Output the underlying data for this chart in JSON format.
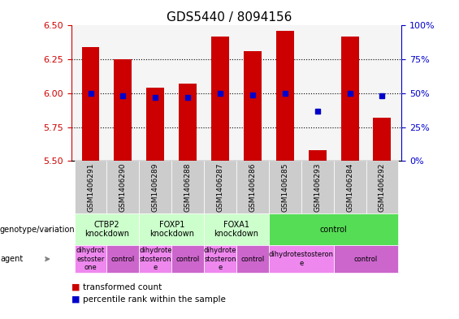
{
  "title": "GDS5440 / 8094156",
  "samples": [
    "GSM1406291",
    "GSM1406290",
    "GSM1406289",
    "GSM1406288",
    "GSM1406287",
    "GSM1406286",
    "GSM1406285",
    "GSM1406293",
    "GSM1406284",
    "GSM1406292"
  ],
  "transformed_count": [
    6.34,
    6.25,
    6.04,
    6.07,
    6.42,
    6.31,
    6.46,
    5.58,
    6.42,
    5.82
  ],
  "percentile_rank": [
    50,
    48,
    47,
    47,
    50,
    49,
    50,
    37,
    50,
    48
  ],
  "ylim": [
    5.5,
    6.5
  ],
  "yticks": [
    5.5,
    5.75,
    6.0,
    6.25,
    6.5
  ],
  "right_yticks": [
    0,
    25,
    50,
    75,
    100
  ],
  "bar_color": "#cc0000",
  "dot_color": "#0000cc",
  "bar_bottom": 5.5,
  "genotype_groups": [
    {
      "label": "CTBP2\nknockdown",
      "start": 0,
      "end": 2,
      "color": "#ccffcc"
    },
    {
      "label": "FOXP1\nknockdown",
      "start": 2,
      "end": 4,
      "color": "#ccffcc"
    },
    {
      "label": "FOXA1\nknockdown",
      "start": 4,
      "end": 6,
      "color": "#ccffcc"
    },
    {
      "label": "control",
      "start": 6,
      "end": 10,
      "color": "#55dd55"
    }
  ],
  "agent_groups": [
    {
      "label": "dihydrot\nestoster\none",
      "start": 0,
      "end": 1,
      "color": "#ee88ee"
    },
    {
      "label": "control",
      "start": 1,
      "end": 2,
      "color": "#cc66cc"
    },
    {
      "label": "dihydrote\nstosteron\ne",
      "start": 2,
      "end": 3,
      "color": "#ee88ee"
    },
    {
      "label": "control",
      "start": 3,
      "end": 4,
      "color": "#cc66cc"
    },
    {
      "label": "dihydrote\nstosteron\ne",
      "start": 4,
      "end": 5,
      "color": "#ee88ee"
    },
    {
      "label": "control",
      "start": 5,
      "end": 6,
      "color": "#cc66cc"
    },
    {
      "label": "dihydrotestosteron\ne",
      "start": 6,
      "end": 8,
      "color": "#ee88ee"
    },
    {
      "label": "control",
      "start": 8,
      "end": 10,
      "color": "#cc66cc"
    }
  ],
  "legend_items": [
    {
      "label": "transformed count",
      "color": "#cc0000"
    },
    {
      "label": "percentile rank within the sample",
      "color": "#0000cc"
    }
  ],
  "left_label_color": "#cc0000",
  "right_label_color": "#0000cc",
  "title_fontsize": 11,
  "tick_fontsize": 8,
  "xtick_fontsize": 6.5,
  "annot_fontsize": 7,
  "agent_fontsize": 6,
  "legend_fontsize": 7.5,
  "sample_bg_color": "#cccccc",
  "plot_bg_color": "#f5f5f5"
}
